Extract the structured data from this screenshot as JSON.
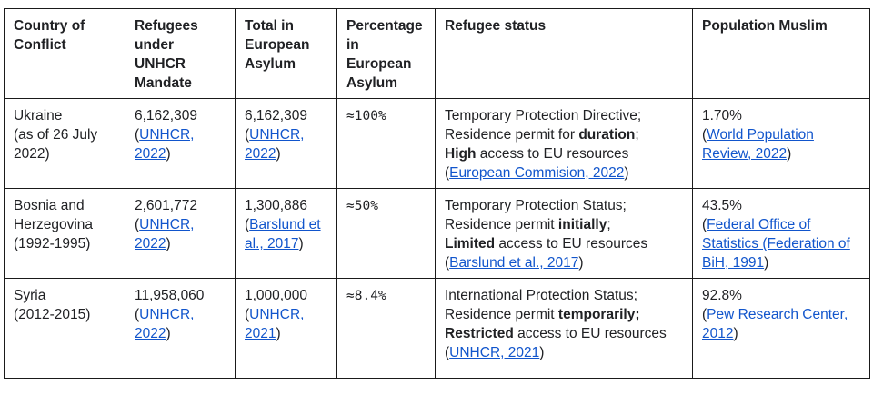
{
  "headers": [
    "Country of Conflict",
    "Refugees under UNHCR Mandate",
    "Total in European Asylum",
    "Percentage in European Asylum",
    "Refugee status",
    "Population Muslim"
  ],
  "rows": [
    {
      "country": "Ukraine",
      "country_note": "(as of 26 July 2022)",
      "refugees": "6,162,309",
      "refugees_src": "UNHCR, 2022",
      "total": "6,162,309",
      "total_src": "UNHCR, 2022",
      "pct": "≈100%",
      "status_line1": "Temporary Protection Directive;",
      "status_line2_pre": "Residence permit for ",
      "status_line2_bold": "duration",
      "status_line2_post": ";",
      "status_line3_bold": "High",
      "status_line3_post": " access to EU resources",
      "status_src": "European Commision, 2022",
      "muslim": "1.70%",
      "muslim_src": "World Population Review, 2022"
    },
    {
      "country": "Bosnia and Herzegovina",
      "country_note": "(1992-1995)",
      "refugees": "2,601,772",
      "refugees_src": "UNHCR, 2022",
      "total": "1,300,886",
      "total_src": "Barslund et al., 2017",
      "pct": "≈50%",
      "status_line1": "Temporary Protection Status;",
      "status_line2_pre": "Residence permit ",
      "status_line2_bold": "initially",
      "status_line2_post": ";",
      "status_line3_bold": "Limited",
      "status_line3_post": " access to EU resources",
      "status_src": "Barslund et al., 2017",
      "muslim": "43.5%",
      "muslim_src": "Federal Office of Statistics (Federation of BiH, 1991"
    },
    {
      "country": "Syria",
      "country_note": "(2012-2015)",
      "refugees": "11,958,060",
      "refugees_src": "UNHCR, 2022",
      "total": "1,000,000",
      "total_src": "UNHCR, 2021",
      "pct": "≈8.4%",
      "status_line1": "International Protection Status;",
      "status_line2_pre": "Residence permit ",
      "status_line2_bold": "temporarily;",
      "status_line2_post": "",
      "status_line3_bold": "Restricted",
      "status_line3_post": " access to EU resources",
      "status_src": "UNHCR, 2021",
      "muslim": "92.8%",
      "muslim_src": "Pew Research Center, 2012"
    }
  ]
}
